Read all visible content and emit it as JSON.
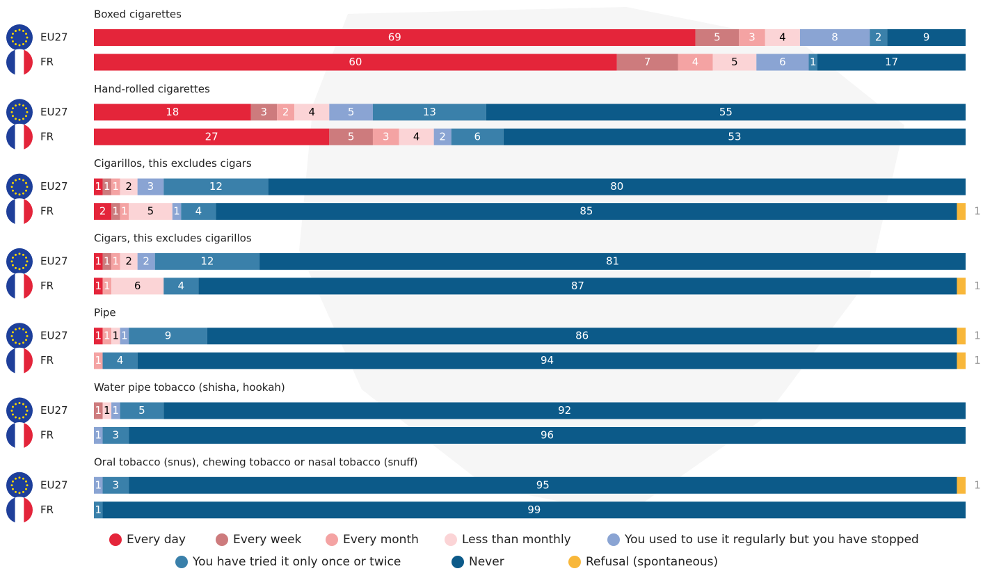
{
  "chart_data": {
    "type": "stacked_bar_horizontal",
    "groups": [
      "Boxed cigarettes",
      "Hand-rolled cigarettes",
      "Cigarillos, this excludes cigars",
      "Cigars, this excludes cigarillos",
      "Pipe",
      "Water pipe tobacco (shisha, hookah)",
      "Oral tobacco (snus), chewing tobacco or nasal tobacco (snuff)"
    ],
    "categories": [
      "EU27",
      "FR",
      "EU27",
      "FR",
      "EU27",
      "FR",
      "EU27",
      "FR",
      "EU27",
      "FR",
      "EU27",
      "FR",
      "EU27",
      "FR"
    ],
    "xlim": [
      0,
      100
    ],
    "series": [
      {
        "name": "Every day",
        "color": "#e4253a",
        "label_color": "#ffffff",
        "values": [
          69,
          60,
          18,
          27,
          1,
          2,
          1,
          1,
          1,
          null,
          null,
          null,
          null,
          null
        ]
      },
      {
        "name": "Every week",
        "color": "#cd7b7d",
        "label_color": "#ffffff",
        "values": [
          5,
          7,
          3,
          5,
          1,
          1,
          1,
          null,
          null,
          null,
          1,
          null,
          null,
          null
        ]
      },
      {
        "name": "Every month",
        "color": "#f4a3a3",
        "label_color": "#ffffff",
        "values": [
          3,
          4,
          2,
          3,
          1,
          1,
          1,
          1,
          1,
          1,
          null,
          null,
          null,
          null
        ]
      },
      {
        "name": "Less than monthly",
        "color": "#fbd4d6",
        "label_color": "#000000",
        "values": [
          4,
          5,
          4,
          4,
          2,
          5,
          2,
          6,
          1,
          null,
          1,
          null,
          null,
          null
        ]
      },
      {
        "name": "You used to use it regularly but you have stopped",
        "color": "#8aa4d3",
        "label_color": "#ffffff",
        "values": [
          8,
          6,
          5,
          2,
          3,
          1,
          2,
          null,
          1,
          null,
          1,
          1,
          1,
          null
        ]
      },
      {
        "name": "You have tried it only once or twice",
        "color": "#3a80aa",
        "label_color": "#ffffff",
        "values": [
          2,
          1,
          13,
          6,
          12,
          4,
          12,
          4,
          9,
          4,
          5,
          3,
          3,
          1
        ]
      },
      {
        "name": "Never",
        "color": "#0c5a89",
        "label_color": "#ffffff",
        "values": [
          9,
          17,
          55,
          53,
          80,
          85,
          81,
          87,
          86,
          94,
          92,
          96,
          95,
          99
        ]
      },
      {
        "name": "Refusal (spontaneous)",
        "color": "#f8b73a",
        "label_color": "#999999",
        "values": [
          null,
          null,
          null,
          null,
          null,
          1,
          null,
          1,
          1,
          1,
          null,
          null,
          1,
          null
        ]
      }
    ]
  }
}
